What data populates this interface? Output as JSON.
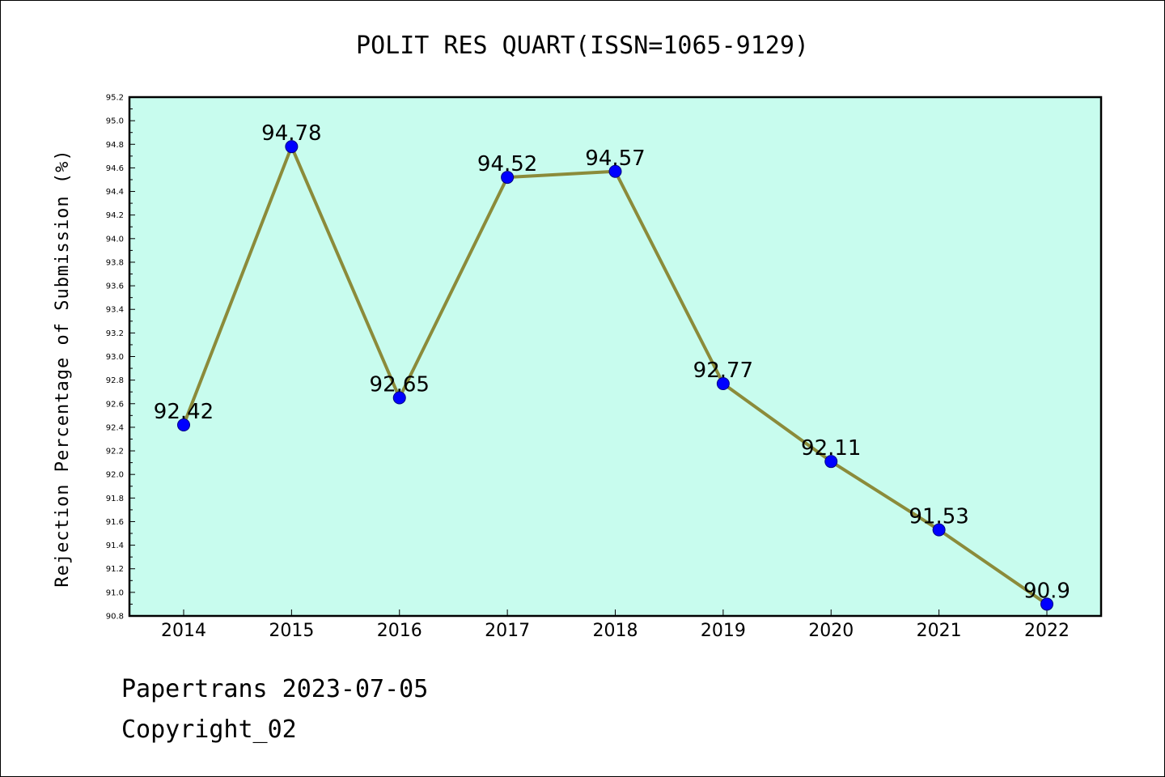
{
  "colors": {
    "plot_background": "#c8fcee",
    "line": "#8b8b3a",
    "marker": "#0000ff",
    "marker_edge": "#000080",
    "axis": "#000000"
  },
  "footer": {
    "line1": "Papertrans 2023-07-05",
    "line2": "Copyright_02"
  },
  "chart_data": {
    "type": "line",
    "title": "POLIT RES QUART(ISSN=1065-9129)",
    "xlabel": "",
    "ylabel": "Rejection Percentage of Submission (%)",
    "categories": [
      "2014",
      "2015",
      "2016",
      "2017",
      "2018",
      "2019",
      "2020",
      "2021",
      "2022"
    ],
    "values": [
      92.42,
      94.78,
      92.65,
      94.52,
      94.57,
      92.77,
      92.11,
      91.53,
      90.9
    ],
    "data_labels": [
      "92.42",
      "94.78",
      "92.65",
      "94.52",
      "94.57",
      "92.77",
      "92.11",
      "91.53",
      "90.9"
    ],
    "ylim": [
      90.8,
      95.2
    ],
    "ytick_step": 0.2,
    "yticks": [
      "90.8",
      "91.0",
      "91.2",
      "91.4",
      "91.6",
      "91.8",
      "92.0",
      "92.2",
      "92.4",
      "92.6",
      "92.8",
      "93.0",
      "93.2",
      "93.4",
      "93.6",
      "93.8",
      "94.0",
      "94.2",
      "94.4",
      "94.6",
      "94.8",
      "95.0",
      "95.2"
    ],
    "grid": false,
    "legend": "none"
  }
}
